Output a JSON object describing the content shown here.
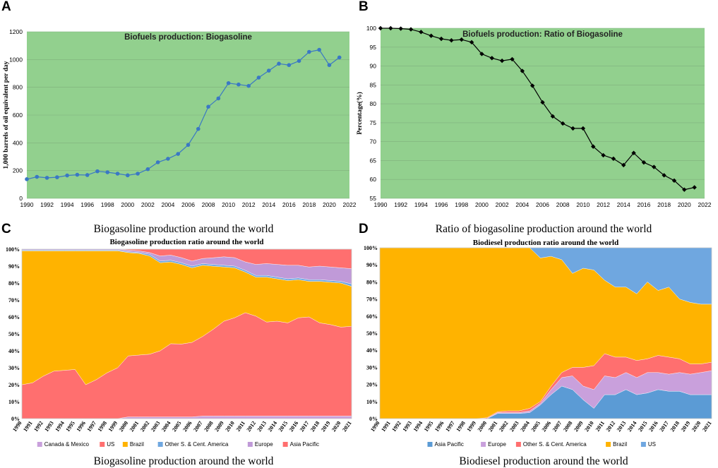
{
  "panels": {
    "a": {
      "letter": "A",
      "caption": "Biogasoline production around the world"
    },
    "b": {
      "letter": "B",
      "caption": "Ratio of biogasoline production around the world"
    },
    "c": {
      "letter": "C",
      "caption": "Biogasoline production around the world"
    },
    "d": {
      "letter": "D",
      "caption": "Biodiesel production around the world"
    }
  },
  "chart_data": [
    {
      "id": "A",
      "type": "line",
      "title": "Biofuels production: Biogasoline",
      "xlabel": "",
      "ylabel": "1,000 barrels of oil equivalent per day",
      "xlim": [
        1990,
        2022
      ],
      "ylim": [
        0,
        1200
      ],
      "xticks": [
        1990,
        1992,
        1994,
        1996,
        1998,
        2000,
        2002,
        2004,
        2006,
        2008,
        2010,
        2012,
        2014,
        2016,
        2018,
        2020,
        2022
      ],
      "yticks": [
        0,
        200,
        400,
        600,
        800,
        1000,
        1200
      ],
      "background": "#92d08e",
      "line_color": "#3a78c4",
      "x": [
        1990,
        1991,
        1992,
        1993,
        1994,
        1995,
        1996,
        1997,
        1998,
        1999,
        2000,
        2001,
        2002,
        2003,
        2004,
        2005,
        2006,
        2007,
        2008,
        2009,
        2010,
        2011,
        2012,
        2013,
        2014,
        2015,
        2016,
        2017,
        2018,
        2019,
        2020,
        2021
      ],
      "values": [
        138,
        155,
        148,
        152,
        165,
        170,
        168,
        195,
        188,
        178,
        166,
        178,
        210,
        260,
        285,
        320,
        385,
        500,
        660,
        720,
        830,
        820,
        810,
        870,
        920,
        970,
        960,
        990,
        1055,
        1070,
        960,
        1015
      ]
    },
    {
      "id": "B",
      "type": "line",
      "title": "Biofuels production: Ratio of Biogasoline",
      "xlabel": "",
      "ylabel": "Percentage(%)",
      "xlim": [
        1990,
        2022
      ],
      "ylim": [
        55,
        100
      ],
      "xticks": [
        1990,
        1992,
        1994,
        1996,
        1998,
        2000,
        2002,
        2004,
        2006,
        2008,
        2010,
        2012,
        2014,
        2016,
        2018,
        2020,
        2022
      ],
      "yticks": [
        55,
        60,
        65,
        70,
        75,
        80,
        85,
        90,
        95,
        100
      ],
      "background": "#92d08e",
      "line_color": "#000000",
      "x": [
        1990,
        1991,
        1992,
        1993,
        1994,
        1995,
        1996,
        1997,
        1998,
        1999,
        2000,
        2001,
        2002,
        2003,
        2004,
        2005,
        2006,
        2007,
        2008,
        2009,
        2010,
        2011,
        2012,
        2013,
        2014,
        2015,
        2016,
        2017,
        2018,
        2019,
        2020,
        2021
      ],
      "values": [
        100,
        100,
        99.9,
        99.7,
        99,
        98,
        97.2,
        96.8,
        97,
        96.3,
        93.2,
        92.1,
        91.4,
        91.8,
        88.7,
        84.8,
        80.4,
        76.7,
        74.8,
        73.5,
        73.5,
        68.7,
        66.4,
        65.5,
        63.8,
        67,
        64.5,
        63.3,
        61.1,
        59.7,
        57.3,
        57.9
      ]
    },
    {
      "id": "C",
      "type": "area",
      "stacked": "percent",
      "title": "Biogasoline production ratio around the world",
      "categories": [
        "1990",
        "1991",
        "1992",
        "1993",
        "1994",
        "1995",
        "1996",
        "1997",
        "1998",
        "1999",
        "2000",
        "2001",
        "2002",
        "2003",
        "2004",
        "2005",
        "2006",
        "2007",
        "2008",
        "2009",
        "2010",
        "2011",
        "2012",
        "2013",
        "2014",
        "2015",
        "2016",
        "2017",
        "2018",
        "2019",
        "2020",
        "2021"
      ],
      "yticks": [
        "0%",
        "10%",
        "20%",
        "30%",
        "40%",
        "50%",
        "60%",
        "70%",
        "80%",
        "90%",
        "100%"
      ],
      "legend_position": "bottom",
      "series": [
        {
          "name": "Canada & Mexico",
          "color": "#c9a0dc",
          "values": [
            0,
            0,
            0,
            0,
            0,
            0,
            0,
            0,
            0,
            0,
            1,
            1,
            1,
            1,
            1,
            1,
            1,
            1.5,
            1.5,
            1.5,
            1.5,
            1.5,
            1.5,
            1.5,
            1.5,
            1.5,
            1.5,
            1.5,
            1.5,
            1.5,
            1.5,
            1.5
          ]
        },
        {
          "name": "US",
          "color": "#ff6f6f",
          "values": [
            20,
            21,
            25,
            28,
            28.5,
            29,
            20,
            23,
            27,
            30,
            36,
            36.5,
            37,
            39,
            43,
            43,
            44,
            47,
            51,
            56,
            58,
            61,
            59,
            55.5,
            56,
            55,
            58,
            58.5,
            55,
            54,
            52.5,
            53
          ]
        },
        {
          "name": "Brazil",
          "color": "#ffb300",
          "values": [
            79,
            77.5,
            74,
            71,
            70.5,
            70,
            79,
            76,
            72,
            69,
            61,
            60,
            58,
            52,
            48,
            47,
            44,
            42,
            37,
            32,
            29.5,
            24,
            23,
            26.5,
            25,
            25,
            22.5,
            21,
            24.5,
            25,
            26,
            23.5
          ]
        },
        {
          "name": "Other S. & Cent. America",
          "color": "#6fa7e0",
          "values": [
            0.5,
            0.5,
            0.5,
            0.5,
            0.5,
            0.5,
            0.5,
            0.5,
            0.5,
            0.5,
            0.5,
            0.5,
            1,
            1,
            1,
            1,
            1,
            1,
            1,
            1,
            1,
            1,
            1,
            1,
            1,
            1,
            1,
            1,
            1,
            1,
            1,
            1.5
          ]
        },
        {
          "name": "Europe",
          "color": "#c09ad8",
          "values": [
            0.5,
            0.5,
            0.5,
            0.5,
            0.5,
            0.5,
            0.5,
            0.5,
            0.5,
            0.5,
            1,
            1,
            1,
            3,
            3,
            3,
            3,
            3,
            4,
            5,
            5,
            5,
            6.5,
            7,
            7.5,
            8,
            7.5,
            7.5,
            8,
            8,
            8,
            9
          ]
        },
        {
          "name": "Asia Pacific",
          "color": "#ff6f6f",
          "values": [
            0,
            0,
            0,
            0,
            0,
            0,
            0,
            0,
            0,
            0,
            0.5,
            1,
            2,
            4,
            3.5,
            5,
            7,
            5.5,
            5,
            4.5,
            5,
            7.5,
            9,
            8.5,
            9,
            9.5,
            9.5,
            10.5,
            10,
            10.5,
            11,
            11.5
          ]
        }
      ]
    },
    {
      "id": "D",
      "type": "area",
      "stacked": "percent",
      "title": "Biodiesel production ratio around the world",
      "categories": [
        "1990",
        "1991",
        "1992",
        "1993",
        "1994",
        "1995",
        "1996",
        "1997",
        "1998",
        "1999",
        "2000",
        "2001",
        "2002",
        "2003",
        "2004",
        "2005",
        "2006",
        "2007",
        "2008",
        "2009",
        "2010",
        "2011",
        "2012",
        "2013",
        "2014",
        "2015",
        "2016",
        "2017",
        "2018",
        "2019",
        "2020",
        "2021"
      ],
      "yticks": [
        "0%",
        "10%",
        "20%",
        "30%",
        "40%",
        "50%",
        "60%",
        "70%",
        "80%",
        "90%",
        "100%"
      ],
      "legend_position": "bottom",
      "series": [
        {
          "name": "Asia Pacific",
          "color": "#5b9bd5",
          "values": [
            0,
            0,
            0,
            0,
            0,
            0,
            0,
            0,
            0,
            0,
            0,
            3,
            3,
            3,
            3.5,
            8,
            14,
            19,
            17,
            11,
            6,
            14,
            14,
            17,
            14,
            15,
            17,
            16,
            16,
            14,
            14,
            14
          ]
        },
        {
          "name": "Europe",
          "color": "#c9a0dc",
          "values": [
            0,
            0,
            0,
            0,
            0,
            0,
            0,
            0,
            0,
            0,
            0,
            0.5,
            0.5,
            0.5,
            1,
            1,
            3,
            5,
            8,
            8,
            11,
            11,
            10,
            10,
            10,
            12,
            10,
            10,
            11,
            12,
            13,
            14
          ]
        },
        {
          "name": "Other S. & Cent. America",
          "color": "#ff6f6f",
          "values": [
            0,
            0,
            0,
            0,
            0,
            0,
            0,
            0,
            0,
            0,
            0.5,
            0.5,
            1,
            1,
            1.5,
            1,
            2,
            3,
            5,
            11,
            14,
            13,
            12,
            9,
            10,
            8,
            10,
            10,
            8,
            6,
            5,
            5
          ]
        },
        {
          "name": "Brazil",
          "color": "#ffb300",
          "values": [
            100,
            100,
            100,
            100,
            100,
            100,
            100,
            100,
            100,
            100,
            99.5,
            96,
            95.5,
            95.5,
            94,
            84,
            76,
            66,
            55,
            58,
            56,
            43,
            41,
            41,
            39,
            45,
            38,
            41,
            35,
            36,
            35,
            34
          ]
        },
        {
          "name": "US",
          "color": "#6fa7e0",
          "values": [
            0,
            0,
            0,
            0,
            0,
            0,
            0,
            0,
            0,
            0,
            0,
            0,
            0,
            0,
            0,
            6,
            5,
            7,
            15,
            12,
            13,
            19,
            23,
            23,
            27,
            20,
            25,
            23,
            30,
            32,
            33,
            33
          ]
        }
      ]
    }
  ]
}
